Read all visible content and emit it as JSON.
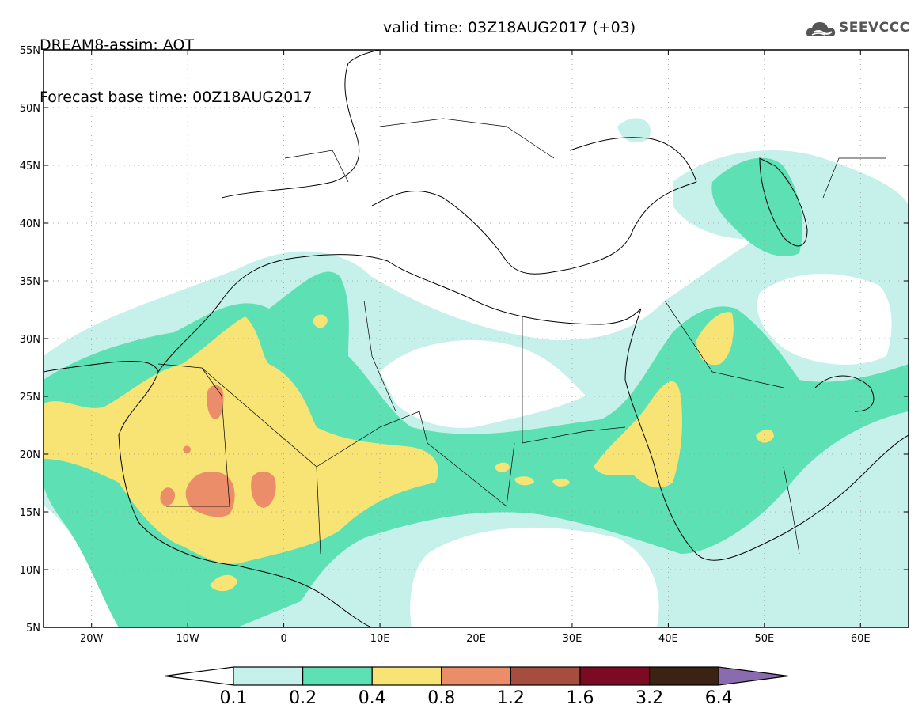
{
  "header": {
    "model": "DREAM8-assim: AOT",
    "base_time": "Forecast base time: 00Z18AUG2017",
    "valid_time": "valid time: 03Z18AUG2017 (+03)"
  },
  "logo": {
    "name": "cloud-logo-icon",
    "text": "SEEVCCC"
  },
  "map": {
    "lon_range": [
      -25,
      65
    ],
    "lat_range": [
      5,
      55
    ],
    "lon_ticks": [
      {
        "value": -20,
        "label": "20W"
      },
      {
        "value": -10,
        "label": "10W"
      },
      {
        "value": 0,
        "label": "0"
      },
      {
        "value": 10,
        "label": "10E"
      },
      {
        "value": 20,
        "label": "20E"
      },
      {
        "value": 30,
        "label": "30E"
      },
      {
        "value": 40,
        "label": "40E"
      },
      {
        "value": 50,
        "label": "50E"
      },
      {
        "value": 60,
        "label": "60E"
      }
    ],
    "lat_ticks": [
      {
        "value": 55,
        "label": "55N"
      },
      {
        "value": 50,
        "label": "50N"
      },
      {
        "value": 45,
        "label": "45N"
      },
      {
        "value": 40,
        "label": "40N"
      },
      {
        "value": 35,
        "label": "35N"
      },
      {
        "value": 30,
        "label": "30N"
      },
      {
        "value": 25,
        "label": "25N"
      },
      {
        "value": 20,
        "label": "20N"
      },
      {
        "value": 15,
        "label": "15N"
      },
      {
        "value": 10,
        "label": "10N"
      },
      {
        "value": 5,
        "label": "5N"
      }
    ],
    "grid": "dotted"
  },
  "legend": {
    "colors": [
      "#c6f1ea",
      "#5ce0b4",
      "#f7e474",
      "#ea8d68",
      "#a54d3f",
      "#7b0a22",
      "#3b2314",
      "#8b6bb0"
    ],
    "labels": [
      "0.1",
      "0.2",
      "0.4",
      "0.8",
      "1.2",
      "1.6",
      "3.2",
      "6.4"
    ]
  }
}
